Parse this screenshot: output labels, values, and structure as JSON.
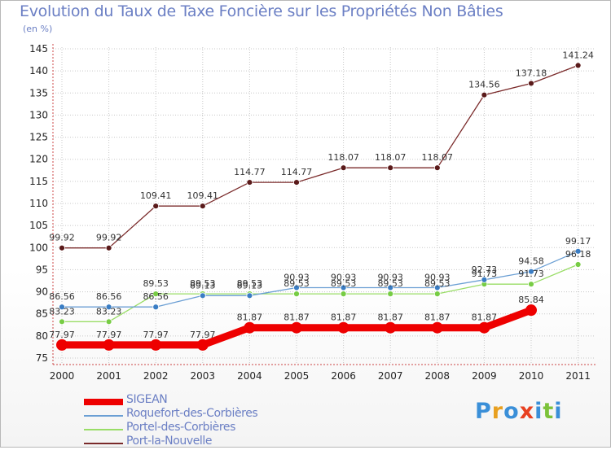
{
  "title": "Evolution du Taux de Taxe Foncière sur les Propriétés Non Bâties",
  "subtitle": "(en %)",
  "logo": "Proxiti",
  "colors": {
    "axis": "#cc4444",
    "grid": "#c8c8c8",
    "title": "#6b7fc4"
  },
  "chart_data": {
    "type": "line",
    "title": "Evolution du Taux de Taxe Foncière sur les Propriétés Non Bâties",
    "ylabel": "(en %)",
    "xlabel": "",
    "ylim": [
      75,
      145
    ],
    "yticks": [
      75,
      80,
      85,
      90,
      95,
      100,
      105,
      110,
      115,
      120,
      125,
      130,
      135,
      140,
      145
    ],
    "grid": true,
    "legend_position": "bottom-left",
    "categories": [
      "2000",
      "2001",
      "2002",
      "2003",
      "2004",
      "2005",
      "2006",
      "2007",
      "2008",
      "2009",
      "2010",
      "2011"
    ],
    "series": [
      {
        "name": "SIGEAN",
        "color": "#ee0000",
        "values": [
          77.97,
          77.97,
          77.97,
          77.97,
          81.87,
          81.87,
          81.87,
          81.87,
          81.87,
          81.87,
          85.84,
          null
        ],
        "labels": [
          "77.97",
          "77.97",
          "77.97",
          "77.97",
          "81.87",
          "81.87",
          "81.87",
          "81.87",
          "81.87",
          "81.87",
          "85.84",
          ""
        ]
      },
      {
        "name": "Roquefort-des-Corbières",
        "color": "#6b9fd4",
        "values": [
          86.56,
          86.56,
          86.56,
          89.13,
          89.13,
          90.93,
          90.93,
          90.93,
          90.93,
          92.73,
          94.58,
          99.17
        ],
        "labels": [
          "86.56",
          "86.56",
          "86.56",
          "89.13",
          "89.13",
          "90.93",
          "90.93",
          "90.93",
          "90.93",
          "92.73",
          "94.58",
          "99.17"
        ]
      },
      {
        "name": "Portel-des-Corbières",
        "color": "#99dd66",
        "values": [
          83.23,
          83.23,
          89.53,
          89.53,
          89.53,
          89.53,
          89.53,
          89.53,
          89.53,
          91.73,
          91.73,
          96.18
        ],
        "labels": [
          "83.23",
          "83.23",
          "89.53",
          "89.53",
          "89.53",
          "89.53",
          "89.53",
          "89.53",
          "89.53",
          "91.73",
          "91.73",
          "96.18"
        ]
      },
      {
        "name": "Port-la-Nouvelle",
        "color": "#7a2a2a",
        "values": [
          99.92,
          99.92,
          109.41,
          109.41,
          114.77,
          114.77,
          118.07,
          118.07,
          118.07,
          134.56,
          137.18,
          141.24
        ],
        "labels": [
          "99.92",
          "99.92",
          "109.41",
          "109.41",
          "114.77",
          "114.77",
          "118.07",
          "118.07",
          "118.07",
          "134.56",
          "137.18",
          "141.24"
        ]
      }
    ]
  }
}
